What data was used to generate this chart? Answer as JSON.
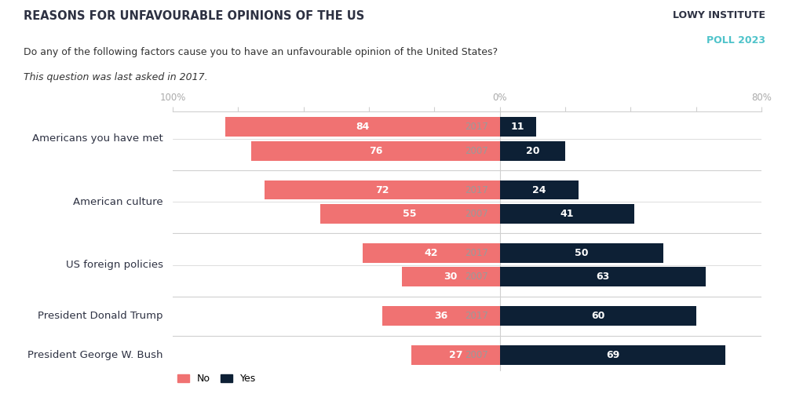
{
  "title": "REASONS FOR UNFAVOURABLE OPINIONS OF THE US",
  "subtitle_line1": "Do any of the following factors cause you to have an unfavourable opinion of the United States?",
  "subtitle_line2": "This question was last asked in 2017.",
  "branding_line1": "LOWY INSTITUTE",
  "branding_line2": "POLL 2023",
  "branding_color1": "#2d3142",
  "branding_color2": "#4ec3ca",
  "color_no": "#f07272",
  "color_yes": "#0d2035",
  "background_color": "#ffffff",
  "rows": [
    {
      "label": "President George W. Bush",
      "year": "2007",
      "no": 27,
      "yes": 69,
      "group": 0
    },
    {
      "label": "President Donald Trump",
      "year": "2017",
      "no": 36,
      "yes": 60,
      "group": 1
    },
    {
      "label": "US foreign policies",
      "year": "2007",
      "no": 30,
      "yes": 63,
      "group": 2
    },
    {
      "label": "US foreign policies",
      "year": "2017",
      "no": 42,
      "yes": 50,
      "group": 2
    },
    {
      "label": "American culture",
      "year": "2007",
      "no": 55,
      "yes": 41,
      "group": 3
    },
    {
      "label": "American culture",
      "year": "2017",
      "no": 72,
      "yes": 24,
      "group": 3
    },
    {
      "label": "Americans you have met",
      "year": "2007",
      "no": 76,
      "yes": 20,
      "group": 4
    },
    {
      "label": "Americans you have met",
      "year": "2017",
      "no": 84,
      "yes": 11,
      "group": 4
    }
  ],
  "group_labels": [
    {
      "label": "President George W. Bush",
      "rows": [
        0
      ]
    },
    {
      "label": "President Donald Trump",
      "rows": [
        1
      ]
    },
    {
      "label": "US foreign policies",
      "rows": [
        2,
        3
      ]
    },
    {
      "label": "American culture",
      "rows": [
        4,
        5
      ]
    },
    {
      "label": "Americans you have met",
      "rows": [
        6,
        7
      ]
    }
  ],
  "xlim_left": -100,
  "xlim_right": 80,
  "legend_no": "No",
  "legend_yes": "Yes",
  "divider_color": "#d0d0d0",
  "tick_color": "#aaaaaa",
  "year_color": "#9a9a9a",
  "label_color": "#2d3142"
}
